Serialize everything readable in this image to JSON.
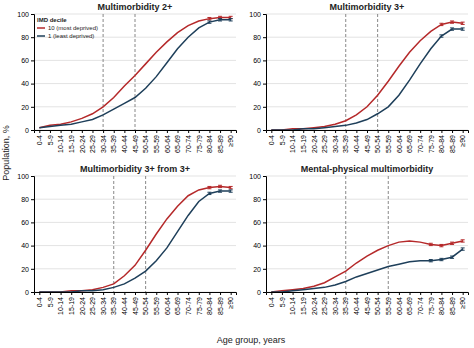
{
  "chart_data": [
    {
      "type": "line",
      "title": "Multimorbidity 2+",
      "categories": [
        "0-4",
        "5-9",
        "10-14",
        "15-19",
        "20-24",
        "25-29",
        "30-34",
        "35-39",
        "40-44",
        "45-49",
        "50-54",
        "55-59",
        "60-64",
        "65-69",
        "70-74",
        "75-79",
        "80-84",
        "85-89",
        "≥90"
      ],
      "series": [
        {
          "name": "10 (most deprived)",
          "color": "#b5292a",
          "values": [
            2,
            4,
            5,
            7,
            10,
            14,
            20,
            28,
            38,
            47,
            57,
            67,
            76,
            84,
            90,
            94,
            96,
            97,
            97
          ],
          "errors": [
            0,
            0,
            0,
            0,
            0,
            0,
            0,
            0,
            0,
            0,
            0,
            0,
            0,
            0,
            0,
            0,
            1,
            1,
            1
          ]
        },
        {
          "name": "1 (least deprived)",
          "color": "#1e3f5a",
          "values": [
            2,
            3,
            4,
            5,
            7,
            9,
            13,
            18,
            23,
            28,
            36,
            46,
            58,
            70,
            80,
            88,
            93,
            95,
            95
          ],
          "errors": [
            0,
            0,
            0,
            0,
            0,
            0,
            0,
            0,
            0,
            0,
            0,
            0,
            0,
            0,
            0,
            0,
            1,
            1,
            1
          ]
        }
      ],
      "vlines": [
        "30-34",
        "45-49"
      ],
      "ylim": [
        0,
        100
      ],
      "yticks": [
        0,
        20,
        40,
        60,
        80,
        100
      ],
      "grid": true,
      "legend": "upper left",
      "legend_title": "IMD decile"
    },
    {
      "type": "line",
      "title": "Multimorbidity 3+",
      "categories": [
        "0-4",
        "5-9",
        "10-14",
        "15-19",
        "20-24",
        "25-29",
        "30-34",
        "35-39",
        "40-44",
        "45-49",
        "50-54",
        "55-59",
        "60-64",
        "65-69",
        "70-74",
        "75-79",
        "80-84",
        "85-89",
        "≥90"
      ],
      "series": [
        {
          "color": "#b5292a",
          "values": [
            0,
            0,
            1,
            1,
            2,
            3,
            5,
            8,
            13,
            20,
            30,
            42,
            55,
            67,
            77,
            85,
            91,
            93,
            92
          ],
          "errors": [
            0,
            0,
            0,
            0,
            0,
            0,
            0,
            0,
            0,
            0,
            0,
            0,
            0,
            0,
            0,
            0,
            1,
            1,
            1
          ]
        },
        {
          "color": "#1e3f5a",
          "values": [
            0,
            0,
            0,
            1,
            1,
            2,
            3,
            4,
            6,
            9,
            14,
            20,
            30,
            43,
            57,
            70,
            81,
            87,
            87
          ],
          "errors": [
            0,
            0,
            0,
            0,
            0,
            0,
            0,
            0,
            0,
            0,
            0,
            0,
            0,
            0,
            0,
            0,
            1,
            1,
            1
          ]
        }
      ],
      "vlines": [
        "35-39",
        "50-54"
      ],
      "ylim": [
        0,
        100
      ],
      "yticks": [
        0,
        20,
        40,
        60,
        80,
        100
      ],
      "grid": true
    },
    {
      "type": "line",
      "title": "Multimorbidity 3+ from 3+",
      "categories": [
        "0-4",
        "5-9",
        "10-14",
        "15-19",
        "20-24",
        "25-29",
        "30-34",
        "35-39",
        "40-44",
        "45-49",
        "50-54",
        "55-59",
        "60-64",
        "65-69",
        "70-74",
        "75-79",
        "80-84",
        "85-89",
        "≥90"
      ],
      "series": [
        {
          "color": "#b5292a",
          "values": [
            0,
            0,
            0,
            1,
            1,
            2,
            4,
            7,
            14,
            23,
            36,
            50,
            63,
            74,
            83,
            88,
            90,
            91,
            90
          ],
          "errors": [
            0,
            0,
            0,
            0,
            0,
            0,
            0,
            0,
            0,
            0,
            0,
            0,
            0,
            0,
            0,
            0,
            1,
            1,
            1
          ]
        },
        {
          "color": "#1e3f5a",
          "values": [
            0,
            0,
            0,
            0,
            1,
            1,
            2,
            4,
            7,
            12,
            18,
            27,
            38,
            52,
            66,
            78,
            85,
            87,
            87
          ],
          "errors": [
            0,
            0,
            0,
            0,
            0,
            0,
            0,
            0,
            0,
            0,
            0,
            0,
            0,
            0,
            0,
            0,
            1,
            1,
            1
          ]
        }
      ],
      "vlines": [
        "35-39",
        "50-54"
      ],
      "ylim": [
        0,
        100
      ],
      "yticks": [
        0,
        20,
        40,
        60,
        80,
        100
      ],
      "grid": true
    },
    {
      "type": "line",
      "title": "Mental-physical multimorbidity",
      "categories": [
        "0-4",
        "5-9",
        "10-14",
        "15-19",
        "20-24",
        "25-29",
        "30-34",
        "35-39",
        "40-44",
        "45-49",
        "50-54",
        "55-59",
        "60-64",
        "65-69",
        "70-74",
        "75-79",
        "80-84",
        "85-89",
        "≥90"
      ],
      "series": [
        {
          "color": "#b5292a",
          "values": [
            0,
            1,
            2,
            3,
            5,
            8,
            13,
            18,
            25,
            31,
            36,
            40,
            43,
            44,
            43,
            41,
            40,
            42,
            44
          ],
          "errors": [
            0,
            0,
            0,
            0,
            0,
            0,
            0,
            0,
            0,
            0,
            0,
            0,
            0,
            0,
            0,
            1,
            1,
            1,
            1
          ]
        },
        {
          "color": "#1e3f5a",
          "values": [
            0,
            0,
            1,
            2,
            3,
            4,
            6,
            9,
            13,
            16,
            19,
            22,
            24,
            26,
            27,
            27,
            28,
            30,
            37
          ],
          "errors": [
            0,
            0,
            0,
            0,
            0,
            0,
            0,
            0,
            0,
            0,
            0,
            0,
            0,
            0,
            0,
            1,
            1,
            1,
            1
          ]
        }
      ],
      "vlines": [
        "35-39",
        "55-59"
      ],
      "ylim": [
        0,
        100
      ],
      "yticks": [
        0,
        20,
        40,
        60,
        80,
        100
      ],
      "grid": true
    }
  ],
  "xlabel": "Age group, years",
  "ylabel": "Population, %"
}
